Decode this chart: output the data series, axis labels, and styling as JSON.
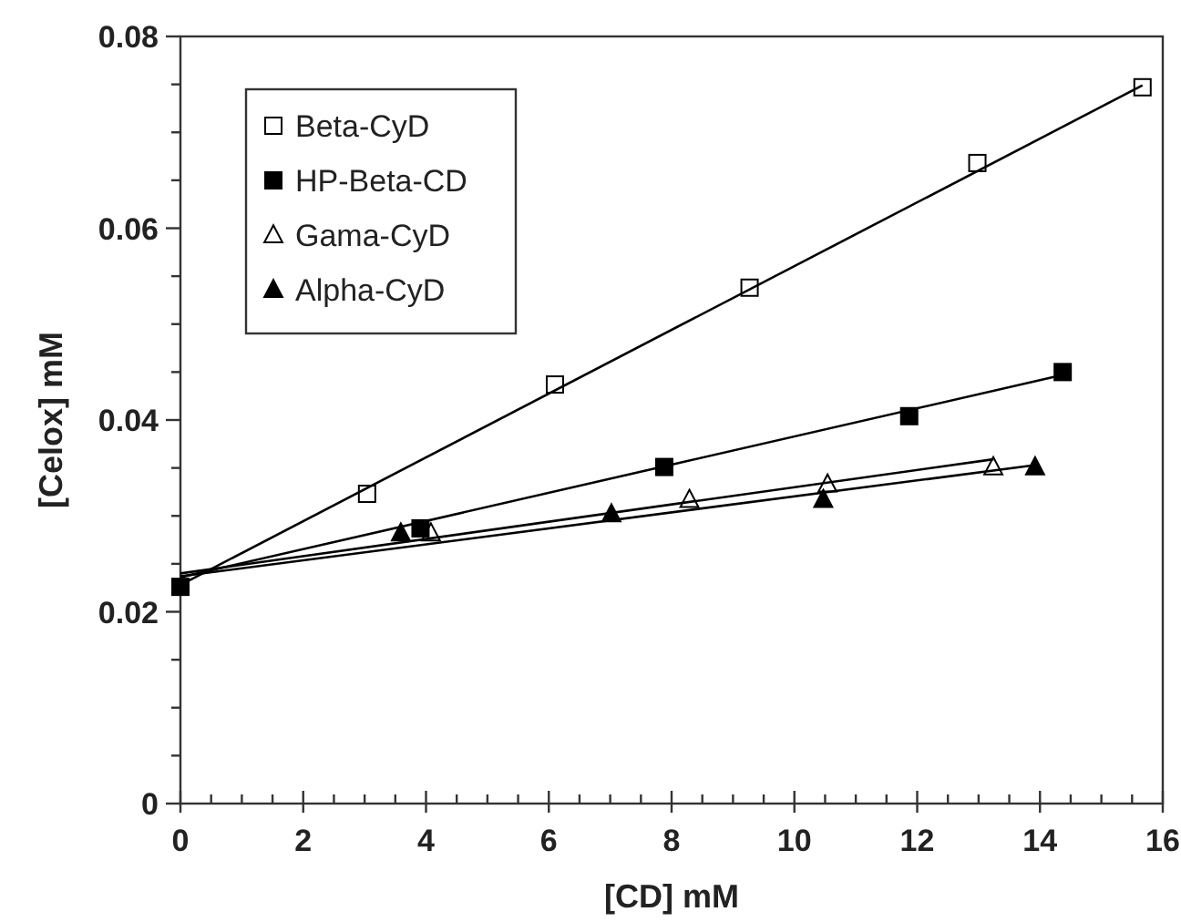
{
  "chart_data": {
    "type": "scatter",
    "xlabel": "[CD] mM",
    "ylabel": "[Celox] mM",
    "xlim": [
      0,
      16
    ],
    "ylim": [
      0,
      0.08
    ],
    "xticks": [
      0,
      {
        "value": 0.5,
        "label": null
      },
      {
        "value": 1,
        "label": null
      },
      {
        "value": 1.5,
        "label": null
      },
      2,
      {
        "value": 2.5,
        "label": null
      },
      {
        "value": 3,
        "label": null
      },
      {
        "value": 3.5,
        "label": null
      },
      4,
      {
        "value": 4.5,
        "label": null
      },
      {
        "value": 5,
        "label": null
      },
      {
        "value": 5.5,
        "label": null
      },
      6,
      {
        "value": 6.5,
        "label": null
      },
      {
        "value": 7,
        "label": null
      },
      {
        "value": 7.5,
        "label": null
      },
      8,
      {
        "value": 8.5,
        "label": null
      },
      {
        "value": 9,
        "label": null
      },
      {
        "value": 9.5,
        "label": null
      },
      10,
      {
        "value": 10.5,
        "label": null
      },
      {
        "value": 11,
        "label": null
      },
      {
        "value": 11.5,
        "label": null
      },
      12,
      {
        "value": 12.5,
        "label": null
      },
      {
        "value": 13,
        "label": null
      },
      {
        "value": 13.5,
        "label": null
      },
      14,
      {
        "value": 14.5,
        "label": null
      },
      {
        "value": 15,
        "label": null
      },
      {
        "value": 15.5,
        "label": null
      },
      16
    ],
    "yticks": [
      0,
      {
        "value": 0.005,
        "label": null
      },
      {
        "value": 0.01,
        "label": null
      },
      {
        "value": 0.015,
        "label": null
      },
      0.02,
      {
        "value": 0.025,
        "label": null
      },
      {
        "value": 0.03,
        "label": null
      },
      {
        "value": 0.035,
        "label": null
      },
      0.04,
      {
        "value": 0.045,
        "label": null
      },
      {
        "value": 0.05,
        "label": null
      },
      {
        "value": 0.055,
        "label": null
      },
      0.06,
      {
        "value": 0.065,
        "label": null
      },
      {
        "value": 0.07,
        "label": null
      },
      {
        "value": 0.075,
        "label": null
      },
      0.08
    ],
    "grid": false,
    "legend": "top left",
    "series": [
      {
        "name": "Beta-CyD",
        "marker": "square",
        "color": "#ffffff",
        "x": [
          3.04,
          6.1,
          9.27,
          12.98,
          15.67
        ],
        "values": [
          0.0323,
          0.0437,
          0.0538,
          0.0668,
          0.0747
        ]
      },
      {
        "name": "HP-Beta-CD",
        "marker": "square",
        "color": "#000000",
        "x": [
          0,
          3.91,
          7.88,
          11.87,
          14.37
        ],
        "values": [
          0.0226,
          0.0287,
          0.0351,
          0.0404,
          0.045
        ]
      },
      {
        "name": "Gama-CyD",
        "marker": "triangle",
        "color": "#ffffff",
        "x": [
          4.08,
          8.29,
          10.54,
          13.24
        ],
        "values": [
          0.0282,
          0.0317,
          0.0333,
          0.0351
        ]
      },
      {
        "name": "Alpha-CyD",
        "marker": "triangle",
        "color": "#000000",
        "x": [
          3.59,
          7.02,
          10.47,
          13.92
        ],
        "values": [
          0.0282,
          0.0302,
          0.0317,
          0.0351
        ]
      },
      {
        "type": "line",
        "marker": "none",
        "color": "#000000",
        "x": [
          0,
          15.67
        ],
        "values": [
          0.0228,
          0.0749
        ]
      },
      {
        "type": "line",
        "marker": "none",
        "color": "#000000",
        "x": [
          0,
          14.37
        ],
        "values": [
          0.0236,
          0.0447
        ]
      },
      {
        "type": "line",
        "marker": "none",
        "color": "#000000",
        "x": [
          0,
          13.24
        ],
        "values": [
          0.024,
          0.0359
        ]
      },
      {
        "type": "line",
        "marker": "none",
        "color": "#000000",
        "x": [
          0,
          13.92
        ],
        "values": [
          0.0237,
          0.0353
        ]
      }
    ]
  }
}
